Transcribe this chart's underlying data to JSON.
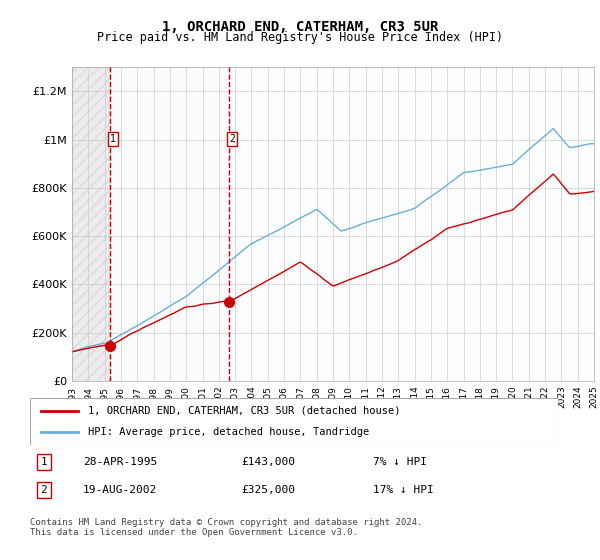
{
  "title": "1, ORCHARD END, CATERHAM, CR3 5UR",
  "subtitle": "Price paid vs. HM Land Registry's House Price Index (HPI)",
  "legend_line1": "1, ORCHARD END, CATERHAM, CR3 5UR (detached house)",
  "legend_line2": "HPI: Average price, detached house, Tandridge",
  "table_row1": [
    "1",
    "28-APR-1995",
    "£143,000",
    "7% ↓ HPI"
  ],
  "table_row2": [
    "2",
    "19-AUG-2002",
    "£325,000",
    "17% ↓ HPI"
  ],
  "footnote": "Contains HM Land Registry data © Crown copyright and database right 2024.\nThis data is licensed under the Open Government Licence v3.0.",
  "purchase1_year": 1995.32,
  "purchase1_price": 143000,
  "purchase2_year": 2002.63,
  "purchase2_price": 325000,
  "hpi_color": "#6baed6",
  "price_color": "#cc0000",
  "dot_color": "#cc0000",
  "vline_color": "#cc0000",
  "hatch_color": "#dddddd",
  "shade_color": "#dce9f5",
  "ylim_max": 1300000,
  "year_start": 1993,
  "year_end": 2025
}
